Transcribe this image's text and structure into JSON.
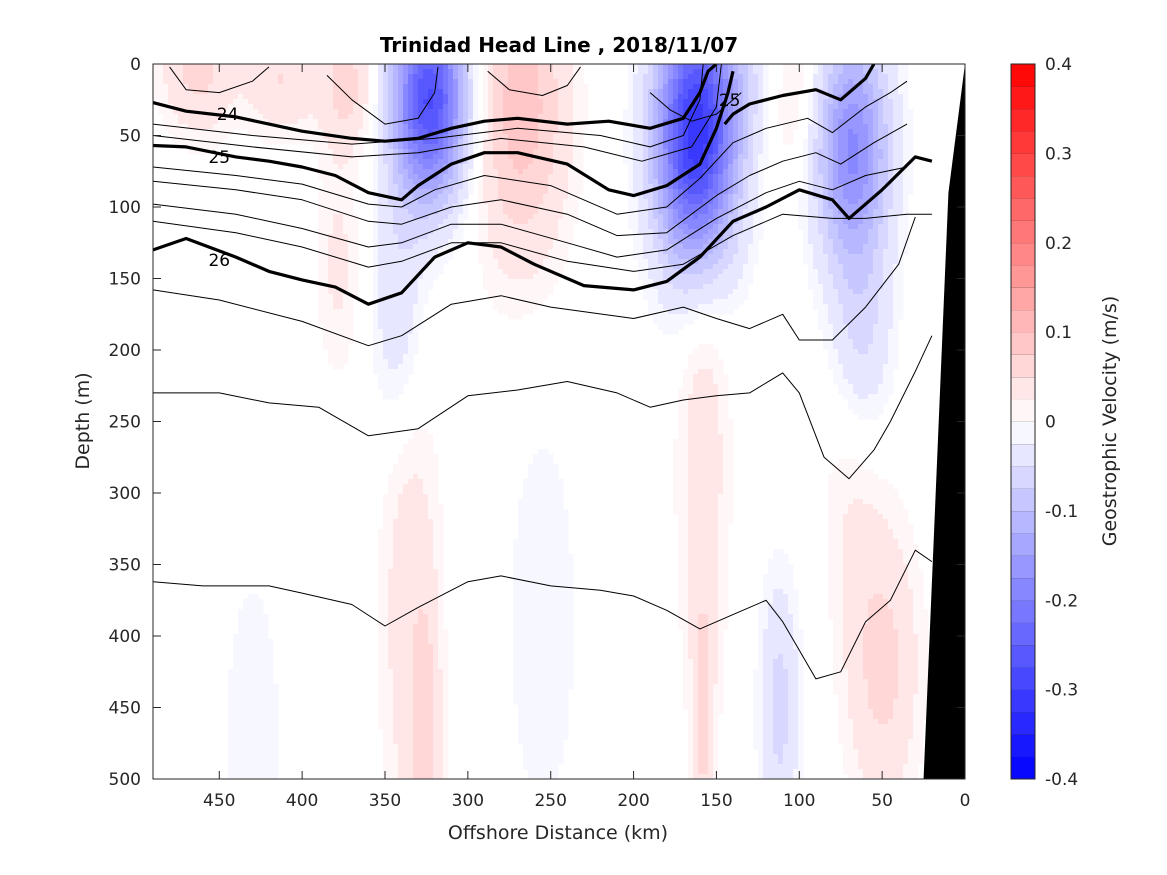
{
  "chart_data": {
    "type": "heatmap",
    "title": "Trinidad Head Line , 2018/11/07",
    "xlabel": "Offshore Distance (km)",
    "ylabel": "Depth (m)",
    "colorbar_label": "Geostrophic Velocity (m/s)",
    "xlim": [
      490,
      0
    ],
    "ylim": [
      0,
      500
    ],
    "x_ticks": [
      "450",
      "400",
      "350",
      "300",
      "250",
      "200",
      "150",
      "100",
      "50",
      "0"
    ],
    "y_ticks": [
      "0",
      "50",
      "100",
      "150",
      "200",
      "250",
      "300",
      "350",
      "400",
      "450",
      "500"
    ],
    "colorbar_ticks": [
      "0.4",
      "0.3",
      "0.2",
      "0.1",
      "0",
      "-0.1",
      "-0.2",
      "-0.3",
      "-0.4"
    ],
    "colorbar_range": [
      -0.4,
      0.4
    ],
    "colorbar_levels": 32,
    "colors": {
      "positive": "#ff0000",
      "negative": "#0000ff",
      "zero": "#ffffff",
      "bathymetry": "#000000"
    },
    "velocity_patches": [
      {
        "x": 463,
        "depth": 0,
        "sx": 22,
        "sz": 50,
        "v": 0.06
      },
      {
        "x": 412,
        "depth": 10,
        "sx": 22,
        "sz": 40,
        "v": 0.05
      },
      {
        "x": 372,
        "depth": 15,
        "sx": 16,
        "sz": 45,
        "v": 0.06
      },
      {
        "x": 378,
        "depth": 140,
        "sx": 14,
        "sz": 80,
        "v": 0.03
      },
      {
        "x": 323,
        "depth": 25,
        "sx": 22,
        "sz": 70,
        "v": -0.28
      },
      {
        "x": 342,
        "depth": 170,
        "sx": 16,
        "sz": 90,
        "v": -0.05
      },
      {
        "x": 268,
        "depth": 30,
        "sx": 28,
        "sz": 110,
        "v": 0.09
      },
      {
        "x": 162,
        "depth": 50,
        "sx": 24,
        "sz": 90,
        "v": -0.33
      },
      {
        "x": 68,
        "depth": 60,
        "sx": 22,
        "sz": 80,
        "v": -0.18
      },
      {
        "x": 62,
        "depth": 190,
        "sx": 18,
        "sz": 70,
        "v": -0.05
      },
      {
        "x": 128,
        "depth": 10,
        "sx": 22,
        "sz": 50,
        "v": -0.03
      },
      {
        "x": 105,
        "depth": 20,
        "sx": 18,
        "sz": 60,
        "v": 0.04
      },
      {
        "x": 335,
        "depth": 380,
        "sx": 18,
        "sz": 190,
        "v": 0.04
      },
      {
        "x": 325,
        "depth": 480,
        "sx": 8,
        "sz": 100,
        "v": 0.05
      },
      {
        "x": 158,
        "depth": 260,
        "sx": 16,
        "sz": 200,
        "v": 0.04
      },
      {
        "x": 158,
        "depth": 460,
        "sx": 6,
        "sz": 90,
        "v": 0.05
      },
      {
        "x": 50,
        "depth": 420,
        "sx": 22,
        "sz": 100,
        "v": 0.06
      },
      {
        "x": 112,
        "depth": 450,
        "sx": 12,
        "sz": 90,
        "v": -0.06
      },
      {
        "x": 430,
        "depth": 470,
        "sx": 18,
        "sz": 120,
        "v": -0.025
      },
      {
        "x": 255,
        "depth": 390,
        "sx": 22,
        "sz": 150,
        "v": -0.025
      },
      {
        "x": 70,
        "depth": 300,
        "sx": 18,
        "sz": 90,
        "v": 0.02
      }
    ],
    "bathymetry": [
      [
        0,
        0
      ],
      [
        10,
        90
      ],
      [
        25,
        500
      ]
    ],
    "contours": [
      {
        "label": "24",
        "bold": true,
        "label_at": [
          445,
          35
        ],
        "points": [
          [
            490,
            27
          ],
          [
            470,
            33
          ],
          [
            440,
            37
          ],
          [
            420,
            42
          ],
          [
            400,
            47
          ],
          [
            370,
            52
          ],
          [
            350,
            54
          ],
          [
            330,
            52
          ],
          [
            310,
            45
          ],
          [
            290,
            40
          ],
          [
            270,
            38
          ],
          [
            240,
            42
          ],
          [
            215,
            40
          ],
          [
            190,
            45
          ],
          [
            170,
            38
          ],
          [
            160,
            20
          ],
          [
            155,
            5
          ],
          [
            150,
            0
          ]
        ]
      },
      {
        "label": "25",
        "bold": true,
        "label_at": [
          450,
          65
        ],
        "points": [
          [
            490,
            57
          ],
          [
            470,
            58
          ],
          [
            440,
            65
          ],
          [
            420,
            68
          ],
          [
            400,
            72
          ],
          [
            380,
            78
          ],
          [
            360,
            90
          ],
          [
            340,
            95
          ],
          [
            330,
            85
          ],
          [
            310,
            70
          ],
          [
            290,
            62
          ],
          [
            270,
            62
          ],
          [
            240,
            70
          ],
          [
            215,
            88
          ],
          [
            200,
            92
          ],
          [
            180,
            85
          ],
          [
            160,
            70
          ],
          [
            150,
            45
          ],
          [
            143,
            20
          ],
          [
            140,
            5
          ]
        ]
      },
      {
        "label": "25",
        "bold": true,
        "label_at": [
          142,
          25
        ],
        "points": [
          [
            145,
            42
          ],
          [
            140,
            35
          ],
          [
            130,
            28
          ],
          [
            110,
            22
          ],
          [
            90,
            18
          ],
          [
            75,
            25
          ],
          [
            60,
            10
          ],
          [
            55,
            0
          ]
        ]
      },
      {
        "label": "26",
        "bold": true,
        "label_at": [
          450,
          137
        ],
        "points": [
          [
            490,
            130
          ],
          [
            470,
            122
          ],
          [
            440,
            135
          ],
          [
            420,
            145
          ],
          [
            400,
            151
          ],
          [
            380,
            156
          ],
          [
            360,
            168
          ],
          [
            340,
            160
          ],
          [
            320,
            135
          ],
          [
            300,
            125
          ],
          [
            280,
            128
          ],
          [
            260,
            140
          ],
          [
            230,
            155
          ],
          [
            200,
            158
          ],
          [
            180,
            152
          ],
          [
            160,
            135
          ],
          [
            140,
            110
          ],
          [
            120,
            100
          ],
          [
            100,
            88
          ],
          [
            80,
            95
          ],
          [
            70,
            108
          ],
          [
            50,
            88
          ],
          [
            30,
            65
          ],
          [
            20,
            68
          ]
        ]
      },
      {
        "bold": false,
        "points": [
          [
            490,
            42
          ],
          [
            430,
            50
          ],
          [
            370,
            56
          ],
          [
            320,
            52
          ],
          [
            270,
            45
          ],
          [
            220,
            50
          ],
          [
            190,
            58
          ],
          [
            170,
            50
          ],
          [
            160,
            25
          ],
          [
            158,
            0
          ]
        ]
      },
      {
        "bold": false,
        "points": [
          [
            490,
            50
          ],
          [
            430,
            58
          ],
          [
            370,
            65
          ],
          [
            330,
            62
          ],
          [
            280,
            52
          ],
          [
            230,
            58
          ],
          [
            195,
            68
          ],
          [
            165,
            58
          ],
          [
            150,
            30
          ],
          [
            147,
            0
          ]
        ]
      },
      {
        "bold": false,
        "points": [
          [
            490,
            72
          ],
          [
            440,
            78
          ],
          [
            400,
            84
          ],
          [
            360,
            98
          ],
          [
            340,
            100
          ],
          [
            320,
            88
          ],
          [
            290,
            78
          ],
          [
            250,
            85
          ],
          [
            210,
            105
          ],
          [
            180,
            100
          ],
          [
            160,
            80
          ],
          [
            140,
            55
          ],
          [
            120,
            45
          ],
          [
            95,
            38
          ],
          [
            80,
            48
          ],
          [
            60,
            30
          ],
          [
            45,
            20
          ],
          [
            35,
            12
          ]
        ]
      },
      {
        "bold": false,
        "points": [
          [
            490,
            82
          ],
          [
            440,
            88
          ],
          [
            400,
            95
          ],
          [
            360,
            110
          ],
          [
            340,
            112
          ],
          [
            310,
            100
          ],
          [
            280,
            95
          ],
          [
            240,
            105
          ],
          [
            210,
            120
          ],
          [
            180,
            118
          ],
          [
            150,
            92
          ],
          [
            130,
            78
          ],
          [
            110,
            68
          ],
          [
            90,
            62
          ],
          [
            75,
            70
          ],
          [
            55,
            55
          ],
          [
            35,
            42
          ]
        ]
      },
      {
        "bold": false,
        "points": [
          [
            490,
            98
          ],
          [
            440,
            105
          ],
          [
            400,
            115
          ],
          [
            360,
            128
          ],
          [
            340,
            125
          ],
          [
            310,
            112
          ],
          [
            280,
            112
          ],
          [
            240,
            125
          ],
          [
            210,
            135
          ],
          [
            180,
            130
          ],
          [
            150,
            108
          ],
          [
            120,
            90
          ],
          [
            100,
            82
          ],
          [
            80,
            88
          ],
          [
            60,
            78
          ],
          [
            35,
            72
          ]
        ]
      },
      {
        "bold": false,
        "points": [
          [
            490,
            110
          ],
          [
            440,
            118
          ],
          [
            400,
            128
          ],
          [
            360,
            142
          ],
          [
            340,
            138
          ],
          [
            310,
            125
          ],
          [
            280,
            125
          ],
          [
            240,
            138
          ],
          [
            200,
            145
          ],
          [
            170,
            140
          ],
          [
            140,
            120
          ],
          [
            110,
            105
          ],
          [
            80,
            108
          ],
          [
            60,
            108
          ],
          [
            35,
            105
          ],
          [
            20,
            105
          ]
        ]
      },
      {
        "bold": false,
        "points": [
          [
            490,
            158
          ],
          [
            450,
            165
          ],
          [
            400,
            180
          ],
          [
            360,
            197
          ],
          [
            340,
            190
          ],
          [
            310,
            168
          ],
          [
            280,
            162
          ],
          [
            250,
            170
          ],
          [
            200,
            178
          ],
          [
            170,
            170
          ],
          [
            150,
            178
          ],
          [
            130,
            185
          ],
          [
            110,
            175
          ],
          [
            100,
            193
          ],
          [
            80,
            193
          ],
          [
            60,
            170
          ],
          [
            40,
            140
          ],
          [
            30,
            107
          ]
        ]
      },
      {
        "bold": false,
        "points": [
          [
            490,
            230
          ],
          [
            450,
            230
          ],
          [
            420,
            237
          ],
          [
            390,
            240
          ],
          [
            360,
            260
          ],
          [
            330,
            255
          ],
          [
            300,
            232
          ],
          [
            270,
            228
          ],
          [
            240,
            222
          ],
          [
            210,
            230
          ],
          [
            190,
            240
          ],
          [
            170,
            235
          ],
          [
            150,
            232
          ],
          [
            130,
            230
          ],
          [
            110,
            216
          ],
          [
            100,
            230
          ],
          [
            85,
            275
          ],
          [
            70,
            290
          ],
          [
            55,
            270
          ],
          [
            45,
            250
          ],
          [
            30,
            215
          ],
          [
            20,
            190
          ]
        ]
      },
      {
        "bold": false,
        "points": [
          [
            490,
            362
          ],
          [
            460,
            365
          ],
          [
            420,
            365
          ],
          [
            400,
            370
          ],
          [
            370,
            378
          ],
          [
            350,
            393
          ],
          [
            330,
            380
          ],
          [
            300,
            362
          ],
          [
            280,
            358
          ],
          [
            250,
            365
          ],
          [
            220,
            368
          ],
          [
            200,
            372
          ],
          [
            180,
            382
          ],
          [
            160,
            395
          ],
          [
            140,
            385
          ],
          [
            120,
            375
          ],
          [
            110,
            390
          ],
          [
            100,
            410
          ],
          [
            90,
            430
          ],
          [
            75,
            425
          ],
          [
            60,
            390
          ],
          [
            45,
            375
          ],
          [
            30,
            340
          ],
          [
            20,
            348
          ]
        ]
      },
      {
        "bold": false,
        "points": [
          [
            480,
            2
          ],
          [
            470,
            18
          ],
          [
            450,
            20
          ],
          [
            430,
            12
          ],
          [
            420,
            2
          ]
        ]
      },
      {
        "bold": false,
        "points": [
          [
            385,
            8
          ],
          [
            370,
            25
          ],
          [
            350,
            42
          ],
          [
            330,
            38
          ],
          [
            320,
            20
          ],
          [
            318,
            2
          ]
        ]
      },
      {
        "bold": false,
        "points": [
          [
            288,
            5
          ],
          [
            275,
            18
          ],
          [
            255,
            22
          ],
          [
            240,
            15
          ],
          [
            232,
            2
          ]
        ]
      },
      {
        "bold": false,
        "points": [
          [
            190,
            20
          ],
          [
            178,
            32
          ],
          [
            165,
            40
          ],
          [
            150,
            35
          ],
          [
            135,
            20
          ]
        ]
      }
    ]
  }
}
